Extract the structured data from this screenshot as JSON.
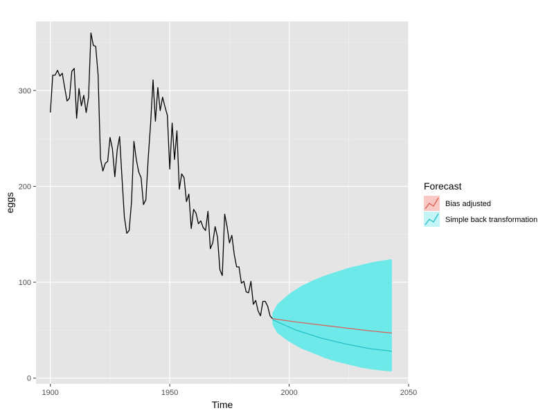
{
  "chart_data": {
    "type": "line",
    "title": "",
    "xlabel": "Time",
    "ylabel": "eggs",
    "xlim": [
      1894,
      2050
    ],
    "ylim": [
      -6,
      372
    ],
    "x_ticks": [
      1900,
      1950,
      2000,
      2050
    ],
    "y_ticks": [
      0,
      100,
      200,
      300
    ],
    "grid": true,
    "legend": {
      "title": "Forecast",
      "position": "right",
      "entries": [
        {
          "label": "Bias adjusted",
          "color": "#e05a4f",
          "fill": "#f8c8c4"
        },
        {
          "label": "Simple back transformation",
          "color": "#1fbcc4",
          "fill": "#c4f4f6"
        }
      ]
    },
    "series": [
      {
        "color": "#000000",
        "x": [
          1900,
          1901,
          1902,
          1903,
          1904,
          1905,
          1906,
          1907,
          1908,
          1909,
          1910,
          1911,
          1912,
          1913,
          1914,
          1915,
          1916,
          1917,
          1918,
          1919,
          1920,
          1921,
          1922,
          1923,
          1924,
          1925,
          1926,
          1927,
          1928,
          1929,
          1930,
          1931,
          1932,
          1933,
          1934,
          1935,
          1936,
          1937,
          1938,
          1939,
          1940,
          1941,
          1942,
          1943,
          1944,
          1945,
          1946,
          1947,
          1948,
          1949,
          1950,
          1951,
          1952,
          1953,
          1954,
          1955,
          1956,
          1957,
          1958,
          1959,
          1960,
          1961,
          1962,
          1963,
          1964,
          1965,
          1966,
          1967,
          1968,
          1969,
          1970,
          1971,
          1972,
          1973,
          1974,
          1975,
          1976,
          1977,
          1978,
          1979,
          1980,
          1981,
          1982,
          1983,
          1984,
          1985,
          1986,
          1987,
          1988,
          1989,
          1990,
          1991,
          1992,
          1993
        ],
        "y": [
          277,
          316,
          316,
          321,
          315,
          318,
          303,
          289,
          292,
          320,
          323,
          271,
          302,
          284,
          295,
          277,
          293,
          360,
          347,
          346,
          316,
          229,
          216,
          224,
          226,
          251,
          239,
          210,
          238,
          252,
          209,
          168,
          151,
          154,
          184,
          247,
          228,
          215,
          209,
          181,
          186,
          230,
          266,
          311,
          268,
          303,
          279,
          293,
          283,
          274,
          218,
          266,
          228,
          258,
          197,
          213,
          209,
          184,
          192,
          156,
          176,
          172,
          161,
          164,
          157,
          154,
          174,
          135,
          141,
          158,
          147,
          113,
          107,
          171,
          158,
          141,
          149,
          129,
          116,
          116,
          99,
          101,
          90,
          89,
          101,
          77,
          81,
          70,
          65,
          80,
          80,
          75,
          65,
          62
        ]
      },
      {
        "name": "Bias adjusted",
        "color": "#e05a4f",
        "x": [
          1993,
          2003,
          2013,
          2023,
          2033,
          2043
        ],
        "y": [
          62,
          58.5,
          55.5,
          52.5,
          49.5,
          47
        ]
      },
      {
        "name": "Simple back transformation",
        "color": "#1fbcc4",
        "x": [
          1993,
          2003,
          2013,
          2023,
          2033,
          2043
        ],
        "y": [
          61,
          50,
          42,
          36,
          31,
          28
        ]
      }
    ],
    "interval": {
      "color": "#6de9ea",
      "x": [
        1993,
        1995,
        2000,
        2005,
        2010,
        2015,
        2020,
        2025,
        2030,
        2035,
        2040,
        2043
      ],
      "lower": [
        56,
        47,
        38,
        31,
        26,
        21,
        17,
        14,
        11,
        9,
        7.5,
        7
      ],
      "upper": [
        68,
        77,
        88,
        96,
        102,
        107,
        111,
        115,
        118,
        121,
        123,
        124
      ]
    }
  }
}
